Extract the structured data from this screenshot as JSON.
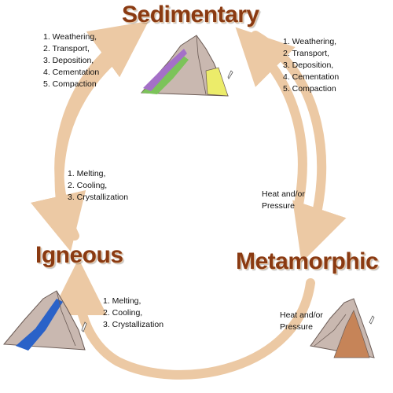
{
  "rock_types": {
    "sedimentary": "Sedimentary",
    "igneous": "Igneous",
    "metamorphic": "Metamorphic"
  },
  "processes": {
    "sed_left": [
      "1. Weathering,",
      "2. Transport,",
      "3. Deposition,",
      "4. Cementation",
      "5. Compaction"
    ],
    "sed_right": [
      "1. Weathering,",
      "2. Transport,",
      "3. Deposition,",
      "4. Cementation",
      "5. Compaction"
    ],
    "ign_upper": [
      "1. Melting,",
      "2. Cooling,",
      "3. Crystallization"
    ],
    "ign_lower": [
      "1. Melting,",
      "2. Cooling,",
      "3. Crystallization"
    ],
    "meta_upper": [
      "Heat and/or",
      "Pressure"
    ],
    "meta_lower": [
      "Heat and/or",
      "Pressure"
    ]
  },
  "colors": {
    "title": "#8a3a12",
    "arrow": "#ecc9a4",
    "rock_base": "#c9b8b0",
    "sed_layer_green": "#7cc35a",
    "sed_layer_purple": "#a470c8",
    "sed_layer_yellow": "#ecec6a",
    "igneous_vein": "#2a62c8",
    "metamorphic_layer": "#c68458"
  },
  "icons": {
    "sedimentary": "sedimentary-rock-icon",
    "igneous": "igneous-rock-icon",
    "metamorphic": "metamorphic-rock-icon"
  }
}
